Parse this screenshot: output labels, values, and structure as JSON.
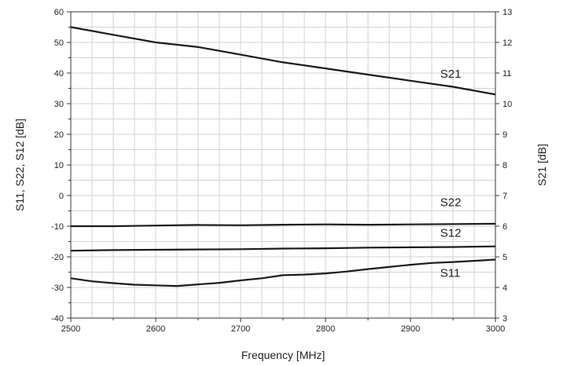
{
  "chart_data": {
    "type": "line",
    "xlabel": "Frequency [MHz]",
    "ylabel_left": "S11, S22, S12 [dB]",
    "ylabel_right": "S21 [dB]",
    "xlim": [
      2500,
      3000
    ],
    "ylim_left": [
      -40,
      60
    ],
    "ylim_right": [
      3,
      13
    ],
    "grid": true,
    "x_ticks": [
      "2500",
      "2600",
      "2700",
      "2800",
      "2900",
      "3000"
    ],
    "y_left_ticks": [
      "-40",
      "-30",
      "-20",
      "-10",
      "0",
      "10",
      "20",
      "30",
      "40",
      "50",
      "60"
    ],
    "y_right_ticks": [
      "3",
      "4",
      "5",
      "6",
      "7",
      "8",
      "9",
      "10",
      "11",
      "12",
      "13"
    ],
    "series": [
      {
        "name": "S21",
        "axis": "right",
        "x": [
          2500,
          2550,
          2600,
          2650,
          2700,
          2750,
          2800,
          2850,
          2900,
          2950,
          3000
        ],
        "values": [
          12.5,
          12.25,
          12.0,
          11.85,
          11.6,
          11.35,
          11.15,
          10.95,
          10.75,
          10.55,
          10.3
        ],
        "label_at": [
          2935,
          10.85
        ]
      },
      {
        "name": "S22",
        "axis": "left",
        "x": [
          2500,
          2550,
          2600,
          2650,
          2700,
          2750,
          2800,
          2850,
          2900,
          2950,
          3000
        ],
        "values": [
          -10.0,
          -10.0,
          -9.8,
          -9.6,
          -9.7,
          -9.5,
          -9.4,
          -9.5,
          -9.4,
          -9.3,
          -9.2
        ],
        "label_at": [
          2935,
          -3.5
        ]
      },
      {
        "name": "S12",
        "axis": "left",
        "x": [
          2500,
          2550,
          2600,
          2650,
          2700,
          2750,
          2800,
          2850,
          2900,
          2950,
          3000
        ],
        "values": [
          -18.0,
          -17.8,
          -17.7,
          -17.6,
          -17.5,
          -17.3,
          -17.2,
          -17.0,
          -16.9,
          -16.8,
          -16.6
        ],
        "label_at": [
          2935,
          -13.5
        ]
      },
      {
        "name": "S11",
        "axis": "left",
        "x": [
          2500,
          2525,
          2550,
          2575,
          2600,
          2625,
          2650,
          2675,
          2700,
          2725,
          2750,
          2775,
          2800,
          2825,
          2850,
          2875,
          2900,
          2925,
          2950,
          2975,
          3000
        ],
        "values": [
          -27.0,
          -28.0,
          -28.6,
          -29.1,
          -29.3,
          -29.5,
          -29.0,
          -28.5,
          -27.7,
          -27.0,
          -26.0,
          -25.8,
          -25.4,
          -24.8,
          -24.0,
          -23.3,
          -22.6,
          -22.0,
          -21.7,
          -21.3,
          -20.9
        ],
        "label_at": [
          2935,
          -26.5
        ]
      }
    ]
  }
}
